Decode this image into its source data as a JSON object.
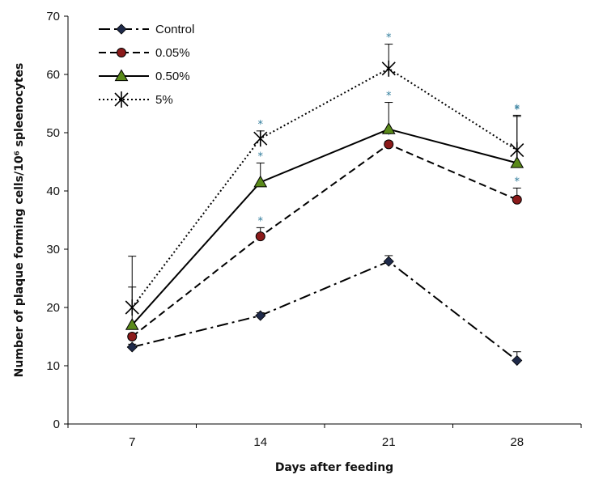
{
  "chart_data": {
    "type": "line",
    "xlabel": "Days after feeding",
    "ylabel": "Number of plaque forming cells/10⁶ spleenocytes",
    "categories": [
      "7",
      "14",
      "21",
      "28"
    ],
    "yticks": [
      "0",
      "10",
      "20",
      "30",
      "40",
      "50",
      "60",
      "70"
    ],
    "ylim": [
      0,
      70
    ],
    "grid": false,
    "legend_position": "top-left",
    "significance_marker": "*",
    "series": [
      {
        "name": "Control",
        "values": [
          13.2,
          18.6,
          27.9,
          10.9
        ],
        "errors": [
          0.5,
          0.5,
          1.0,
          1.5
        ],
        "significant": [
          false,
          false,
          false,
          false
        ],
        "color": "#000000",
        "dash": "dashdot",
        "marker": "diamond",
        "marker_color": "#1f2a4a"
      },
      {
        "name": "0.05%",
        "values": [
          15.0,
          32.2,
          48.0,
          38.5
        ],
        "errors": [
          0.5,
          1.5,
          0.5,
          2.0
        ],
        "significant": [
          false,
          true,
          true,
          true
        ],
        "color": "#000000",
        "dash": "dashed",
        "marker": "circle",
        "marker_color": "#8b1a1a"
      },
      {
        "name": "0.50%",
        "values": [
          17.0,
          41.5,
          50.6,
          44.8
        ],
        "errors": [
          6.5,
          3.3,
          4.6,
          8.0
        ],
        "significant": [
          false,
          true,
          true,
          true
        ],
        "color": "#000000",
        "dash": "solid",
        "marker": "triangle",
        "marker_color": "#5a8a1a"
      },
      {
        "name": "5%",
        "values": [
          20.0,
          49.0,
          61.0,
          47.0
        ],
        "errors": [
          8.8,
          1.3,
          4.2,
          6.0
        ],
        "significant": [
          false,
          true,
          true,
          true
        ],
        "color": "#000000",
        "dash": "dotted",
        "marker": "asterisk",
        "marker_color": "#000000"
      }
    ]
  }
}
